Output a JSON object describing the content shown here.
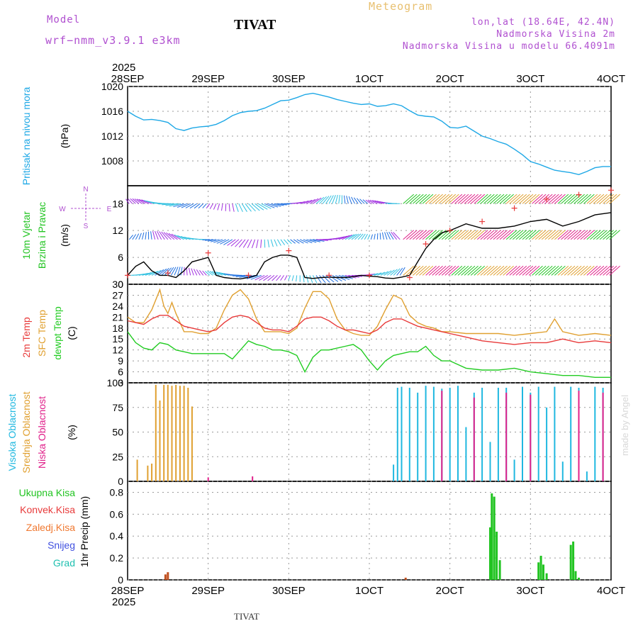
{
  "header": {
    "model_label": "Model",
    "model_name": "wrf−nmm_v3.9.1  e3km",
    "station": "TIVAT",
    "meteogram": "Meteogram",
    "lonlat": "lon,lat (18.64E, 42.4N)",
    "elevation": "Nadmorska Visina 2m",
    "model_elevation": "Nadmorska Visina u modelu 66.4091m",
    "footer_station": "TIVAT",
    "credit": "made by Angel"
  },
  "colors": {
    "pressure": "#1ea8e6",
    "wind_label": "#22c422",
    "temp2m": "#e83a3a",
    "sfc": "#e0a030",
    "dew": "#22cc22",
    "cloud_high": "#20b8e0",
    "cloud_mid": "#e0a030",
    "cloud_low": "#e0208a",
    "rain": "#22c422",
    "purple": "#b050d0"
  },
  "chart_data": [
    {
      "type": "line",
      "panel": "pressure",
      "ylabel_left": "Pritisak na nivou mora",
      "unit": "(hPa)",
      "ylim": [
        1004,
        1020
      ],
      "yticks": [
        1008,
        1012,
        1016,
        1020
      ],
      "x_top_year": "2025",
      "x_ticks": [
        "28SEP",
        "29SEP",
        "30SEP",
        "1OCT",
        "2OCT",
        "3OCT",
        "4OCT"
      ],
      "series": [
        {
          "name": "pressure",
          "x": [
            0,
            0.1,
            0.2,
            0.3,
            0.4,
            0.5,
            0.6,
            0.7,
            0.8,
            0.9,
            1.0,
            1.1,
            1.2,
            1.3,
            1.4,
            1.5,
            1.6,
            1.7,
            1.8,
            1.9,
            2.0,
            2.1,
            2.2,
            2.3,
            2.4,
            2.5,
            2.6,
            2.7,
            2.8,
            2.9,
            3.0,
            3.1,
            3.2,
            3.3,
            3.4,
            3.5,
            3.6,
            3.7,
            3.8,
            3.9,
            4.0,
            4.1,
            4.2,
            4.3,
            4.4,
            4.5,
            4.6,
            4.7,
            4.8,
            4.9,
            5.0,
            5.1,
            5.2,
            5.3,
            5.4,
            5.5,
            5.6,
            5.7,
            5.8,
            5.9,
            6.0
          ],
          "values": [
            1016,
            1015.2,
            1014.6,
            1014.7,
            1014.5,
            1014.2,
            1013.2,
            1012.9,
            1013.3,
            1013.5,
            1013.6,
            1013.9,
            1014.5,
            1015.3,
            1015.8,
            1016,
            1016.1,
            1016.5,
            1017.1,
            1017.7,
            1017.8,
            1018.2,
            1018.7,
            1018.9,
            1018.6,
            1018.3,
            1017.9,
            1017.6,
            1017.3,
            1017.1,
            1017.2,
            1016.8,
            1016.9,
            1017.2,
            1016.9,
            1016.1,
            1015.4,
            1015.2,
            1015.1,
            1014.4,
            1013.4,
            1013.3,
            1013.6,
            1012.8,
            1012.0,
            1011.6,
            1011.1,
            1010.7,
            1009.9,
            1009.0,
            1007.9,
            1007.5,
            1007.0,
            1006.5,
            1006.3,
            1006.1,
            1005.8,
            1006.3,
            1006.9,
            1007.1,
            1007.1
          ]
        }
      ]
    },
    {
      "type": "line",
      "panel": "wind",
      "ylabel_left": "10m Vjetar Brzina i Pravac",
      "unit": "(m/s)",
      "compass": {
        "n": "N",
        "s": "S",
        "e": "E",
        "w": "W"
      },
      "ylim": [
        0,
        22
      ],
      "yticks": [
        0,
        6,
        12,
        18
      ],
      "series": [
        {
          "name": "wind speed",
          "x": [
            0,
            0.1,
            0.2,
            0.3,
            0.4,
            0.5,
            0.6,
            0.7,
            0.8,
            0.9,
            1.0,
            1.1,
            1.2,
            1.3,
            1.4,
            1.5,
            1.6,
            1.7,
            1.8,
            1.9,
            2.0,
            2.1,
            2.2,
            2.3,
            2.4,
            2.5,
            2.6,
            2.7,
            2.8,
            2.9,
            3.0,
            3.1,
            3.2,
            3.3,
            3.4,
            3.5,
            3.6,
            3.7,
            3.8,
            3.9,
            4.0,
            4.2,
            4.4,
            4.6,
            4.8,
            5.0,
            5.2,
            5.4,
            5.6,
            5.8,
            6.0
          ],
          "values": [
            2,
            4,
            5,
            3,
            2,
            2,
            1.5,
            3,
            5,
            5.5,
            6,
            2,
            1.5,
            1.3,
            1.2,
            1.5,
            2,
            5,
            6,
            6.5,
            6.5,
            6,
            1.5,
            1.3,
            1.5,
            1.6,
            1.5,
            1.5,
            1.7,
            2,
            1.8,
            1.7,
            1.4,
            1.3,
            1.6,
            2,
            5,
            8,
            10,
            11.5,
            12,
            13.5,
            12.5,
            12.5,
            13,
            14,
            14.5,
            13,
            14,
            15.5,
            16
          ]
        },
        {
          "name": "wind gust",
          "x": [
            0,
            0.5,
            1.0,
            1.5,
            2.0,
            2.5,
            3.0,
            3.5,
            3.7,
            4.0,
            4.4,
            4.8,
            5.2,
            5.6,
            6.0
          ],
          "values": [
            2,
            2.5,
            7,
            2,
            7.5,
            2,
            2,
            1.5,
            9,
            12,
            14,
            17,
            19,
            20,
            21
          ]
        }
      ]
    },
    {
      "type": "line",
      "panel": "temperature",
      "ylabel_left": [
        "2m Temp",
        "SFC Temp",
        "dewpt Temp"
      ],
      "unit": "(C)",
      "ylim": [
        3,
        30
      ],
      "yticks": [
        3,
        6,
        9,
        12,
        15,
        18,
        21,
        24,
        27,
        30
      ],
      "series": [
        {
          "name": "2m Temp",
          "x": [
            0,
            0.1,
            0.2,
            0.3,
            0.4,
            0.5,
            0.6,
            0.7,
            0.8,
            0.9,
            1.0,
            1.1,
            1.2,
            1.3,
            1.4,
            1.5,
            1.6,
            1.7,
            1.8,
            1.9,
            2.0,
            2.1,
            2.2,
            2.3,
            2.4,
            2.5,
            2.6,
            2.7,
            2.8,
            2.9,
            3.0,
            3.1,
            3.2,
            3.3,
            3.4,
            3.5,
            3.6,
            3.7,
            3.8,
            3.9,
            4.0,
            4.2,
            4.4,
            4.6,
            4.8,
            5.0,
            5.2,
            5.4,
            5.6,
            5.8,
            6.0
          ],
          "values": [
            20,
            19.5,
            19,
            20.5,
            21.5,
            21.5,
            20,
            18.5,
            18,
            17.5,
            17,
            17.5,
            19.5,
            21,
            21.5,
            21,
            19.5,
            18,
            17.5,
            17.5,
            17,
            18.5,
            20.5,
            21,
            21,
            20,
            18.5,
            17.5,
            17.5,
            17,
            16.5,
            17.5,
            19.5,
            20.5,
            20.5,
            19.5,
            18.5,
            18,
            17.5,
            17,
            16.5,
            15.5,
            14.5,
            14,
            13.5,
            14,
            14,
            15,
            14,
            14.5,
            14
          ]
        },
        {
          "name": "SFC Temp",
          "x": [
            0,
            0.1,
            0.2,
            0.3,
            0.4,
            0.45,
            0.5,
            0.55,
            0.6,
            0.7,
            0.8,
            0.9,
            1.0,
            1.1,
            1.2,
            1.3,
            1.4,
            1.5,
            1.6,
            1.7,
            1.8,
            1.9,
            2.0,
            2.1,
            2.2,
            2.3,
            2.4,
            2.5,
            2.6,
            2.7,
            2.8,
            2.9,
            3.0,
            3.1,
            3.2,
            3.3,
            3.4,
            3.5,
            3.6,
            3.7,
            3.8,
            3.9,
            4.0,
            4.2,
            4.4,
            4.6,
            4.8,
            5.0,
            5.2,
            5.3,
            5.4,
            5.6,
            5.8,
            6.0
          ],
          "values": [
            21,
            19.5,
            19.5,
            23,
            28.5,
            24,
            22,
            25,
            22,
            17,
            17,
            16.5,
            16.5,
            18,
            23,
            27,
            28.5,
            26,
            20.5,
            17,
            17,
            17,
            16.5,
            18,
            23.5,
            28,
            28,
            26,
            20.5,
            17.5,
            16.5,
            16,
            16,
            18.5,
            23,
            27,
            26,
            21.5,
            19.5,
            18.5,
            18,
            17,
            17,
            16.5,
            16.5,
            16.5,
            16,
            16.5,
            17,
            20.5,
            17,
            16,
            16.5,
            16
          ]
        },
        {
          "name": "dewpt Temp",
          "x": [
            0,
            0.1,
            0.2,
            0.3,
            0.4,
            0.5,
            0.6,
            0.7,
            0.8,
            0.9,
            1.0,
            1.1,
            1.2,
            1.3,
            1.4,
            1.5,
            1.6,
            1.7,
            1.8,
            1.9,
            2.0,
            2.1,
            2.2,
            2.3,
            2.4,
            2.5,
            2.6,
            2.7,
            2.8,
            2.9,
            3.0,
            3.1,
            3.2,
            3.3,
            3.4,
            3.5,
            3.6,
            3.7,
            3.8,
            3.9,
            4.0,
            4.2,
            4.4,
            4.6,
            4.8,
            5.0,
            5.2,
            5.4,
            5.6,
            5.8,
            6.0
          ],
          "values": [
            17,
            14,
            12.5,
            12,
            14,
            13.5,
            12,
            11.5,
            11,
            11,
            11,
            11,
            11,
            9.5,
            12,
            14.5,
            13.5,
            13,
            12,
            12,
            11.5,
            10.5,
            6,
            10,
            12,
            12,
            12.5,
            13,
            13.5,
            12,
            9,
            6.5,
            9,
            10.5,
            11,
            11.5,
            11.5,
            13,
            10.5,
            9,
            9,
            7,
            6.5,
            6.5,
            7,
            6,
            5.5,
            5,
            5,
            4.5,
            4.5
          ]
        }
      ]
    },
    {
      "type": "bar",
      "panel": "clouds",
      "ylabel_left": [
        "Visoka Oblacnost",
        "Srednja Oblacnost",
        "Niska Oblacnost"
      ],
      "unit": "(%)",
      "ylim": [
        0,
        100
      ],
      "yticks": [
        0,
        25,
        50,
        75,
        100
      ],
      "series": [
        {
          "name": "Srednja Oblacnost",
          "x": [
            0.12,
            0.25,
            0.3,
            0.35,
            0.4,
            0.45,
            0.5,
            0.55,
            0.6,
            0.65,
            0.7,
            0.75,
            0.8
          ],
          "values": [
            22,
            16,
            18,
            98,
            82,
            98,
            98,
            97,
            98,
            97,
            97,
            95,
            76
          ]
        },
        {
          "name": "Visoka Oblacnost",
          "x": [
            3.3,
            3.35,
            3.4,
            3.5,
            3.6,
            3.7,
            3.8,
            3.9,
            4.0,
            4.1,
            4.2,
            4.3,
            4.4,
            4.5,
            4.6,
            4.7,
            4.8,
            4.9,
            5.0,
            5.1,
            5.2,
            5.3,
            5.4,
            5.5,
            5.6,
            5.7,
            5.8,
            5.9
          ],
          "values": [
            17,
            95,
            96,
            95,
            90,
            97,
            96,
            94,
            95,
            97,
            55,
            90,
            95,
            40,
            95,
            95,
            22,
            96,
            90,
            96,
            75,
            96,
            20,
            96,
            95,
            10,
            96,
            95
          ]
        },
        {
          "name": "Niska Oblacnost",
          "x": [
            1.0,
            1.55,
            3.9,
            4.3,
            4.7,
            5.0,
            5.6,
            5.9
          ],
          "values": [
            4,
            5,
            92,
            85,
            90,
            88,
            92,
            90
          ]
        }
      ]
    },
    {
      "type": "bar",
      "panel": "precip",
      "ylabel_left": [
        "Ukupna Kisa",
        "Konvek.Kisa",
        "Zaledj.Kisa",
        "Snijeg",
        "Grad"
      ],
      "ylabel": "1hr Precip (mm)",
      "ylim": [
        0,
        0.9
      ],
      "yticks": [
        0,
        0.2,
        0.4,
        0.6,
        0.8
      ],
      "x_bottom_year": "2025",
      "series": [
        {
          "name": "Ukupna Kisa",
          "x": [
            4.5,
            4.52,
            4.55,
            4.58,
            4.62,
            5.1,
            5.13,
            5.16,
            5.2,
            5.5,
            5.53,
            5.56,
            5.6
          ],
          "values": [
            0.48,
            0.79,
            0.76,
            0.44,
            0.18,
            0.16,
            0.22,
            0.14,
            0.06,
            0.32,
            0.35,
            0.08,
            0.02
          ]
        },
        {
          "name": "Konvek.Kisa",
          "x": [
            0.47,
            0.5,
            3.45
          ],
          "values": [
            0.05,
            0.07,
            0.02
          ]
        }
      ]
    }
  ],
  "labels": {
    "pressure_axis": "Pritisak na nivou mora",
    "pressure_unit": "(hPa)",
    "wind_axis_1": "10m Vjetar",
    "wind_axis_2": "Brzina i Pravac",
    "wind_unit": "(m/s)",
    "temp_2m": "2m Temp",
    "temp_sfc": "SFC Temp",
    "temp_dew": "dewpt Temp",
    "temp_unit": "(C)",
    "cloud_high": "Visoka Oblacnost",
    "cloud_mid": "Srednja Oblacnost",
    "cloud_low": "Niska Oblacnost",
    "cloud_unit": "(%)",
    "precip_total": "Ukupna Kisa",
    "precip_conv": "Konvek.Kisa",
    "precip_frozen": "Zaledj.Kisa",
    "precip_snow": "Snijeg",
    "precip_hail": "Grad",
    "precip_axis": "1hr Precip (mm)",
    "year": "2025"
  }
}
